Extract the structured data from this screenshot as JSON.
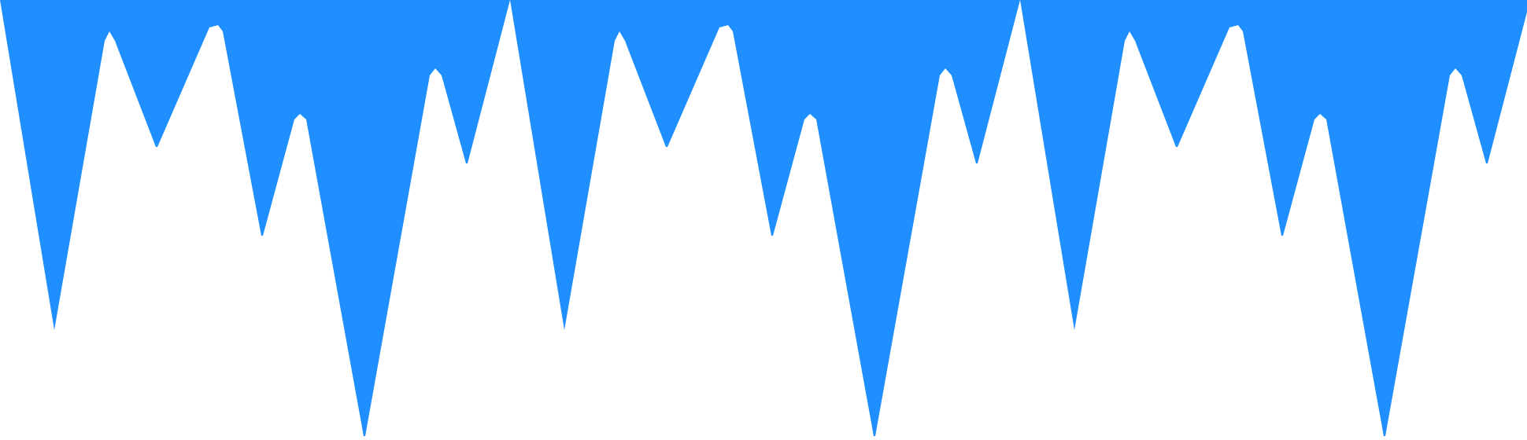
{
  "graphic": {
    "name": "icicle-border",
    "fill_color": "#1F8FFF",
    "background_color": "#FFFFFF",
    "repeat_count": 3
  }
}
